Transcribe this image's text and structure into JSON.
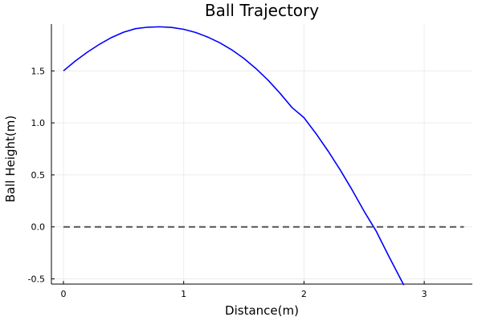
{
  "chart_data": {
    "type": "line",
    "title": "Ball Trajectory",
    "xlabel": "Distance(m)",
    "ylabel": "Ball Height(m)",
    "xlim": [
      -0.1,
      3.4
    ],
    "ylim": [
      -0.55,
      1.95
    ],
    "xticks": [
      0,
      1,
      2,
      3
    ],
    "xtick_labels": [
      "0",
      "1",
      "2",
      "3"
    ],
    "yticks": [
      -0.5,
      0.0,
      0.5,
      1.0,
      1.5
    ],
    "ytick_labels": [
      "-0.5",
      "0.0",
      "0.5",
      "1.0",
      "1.5"
    ],
    "grid": true,
    "legend": "none",
    "series": [
      {
        "style": "solid",
        "color": "#0000ff",
        "x": [
          0,
          0.1,
          0.2,
          0.3,
          0.4,
          0.5,
          0.6,
          0.7,
          0.8,
          0.9,
          1.0,
          1.1,
          1.2,
          1.3,
          1.4,
          1.5,
          1.6,
          1.7,
          1.8,
          1.9,
          2.0,
          2.1,
          2.2,
          2.3,
          2.4,
          2.5,
          2.6,
          2.7,
          2.83
        ],
        "y": [
          1.5,
          1.596,
          1.681,
          1.756,
          1.821,
          1.872,
          1.906,
          1.92,
          1.924,
          1.918,
          1.9,
          1.869,
          1.825,
          1.77,
          1.702,
          1.62,
          1.523,
          1.412,
          1.286,
          1.148,
          1.05,
          0.897,
          0.73,
          0.55,
          0.356,
          0.15,
          -0.04,
          -0.27,
          -0.56
        ]
      },
      {
        "style": "dashed",
        "color": "#555555",
        "x": [
          0,
          3.33
        ],
        "y": [
          0,
          0
        ]
      }
    ]
  }
}
